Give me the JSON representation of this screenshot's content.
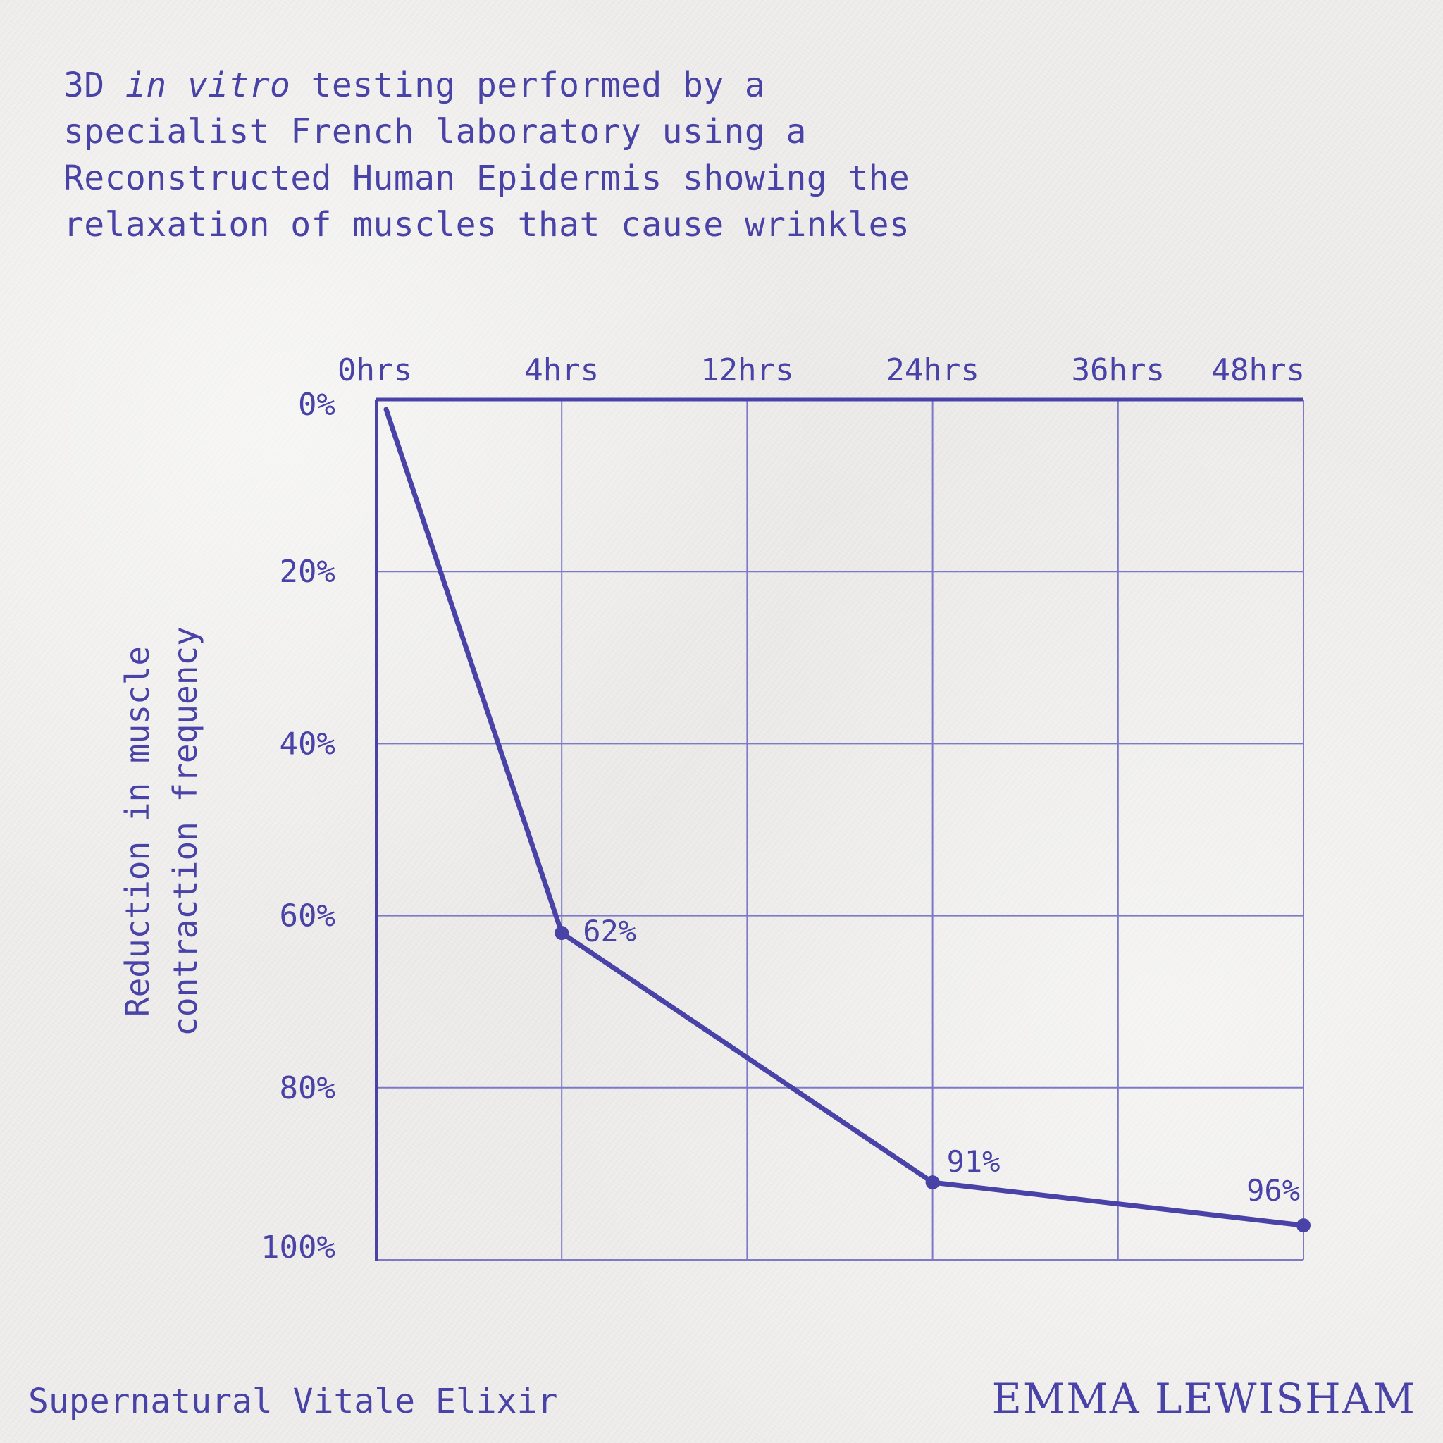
{
  "header": {
    "prefix": "3D ",
    "italic": "in vitro",
    "rest": " testing performed by a specialist French laboratory using a Reconstructed Human Epidermis showing the relaxation of muscles that cause wrinkles"
  },
  "footer": {
    "product": "Supernatural Vitale Elixir",
    "brand": "EMMA LEWISHAM"
  },
  "chart_data": {
    "type": "line",
    "categories": [
      "0hrs",
      "4hrs",
      "12hrs",
      "24hrs",
      "36hrs",
      "48hrs"
    ],
    "series": [
      {
        "name": "",
        "values": [
          0,
          62,
          null,
          91,
          null,
          96
        ],
        "labels": [
          "",
          "62%",
          "",
          "91%",
          "",
          "96%"
        ]
      }
    ],
    "y_ticks": [
      "0%",
      "20%",
      "40%",
      "60%",
      "80%",
      "100%"
    ],
    "ylabel_lines": [
      "Reduction in muscle",
      "contraction frequency"
    ],
    "ylim": [
      0,
      100
    ],
    "y_axis_inverted": true,
    "x_axis_position": "top",
    "grid": true,
    "colors": {
      "ink": "#4a43a7",
      "grid": "#7d79c7"
    }
  }
}
